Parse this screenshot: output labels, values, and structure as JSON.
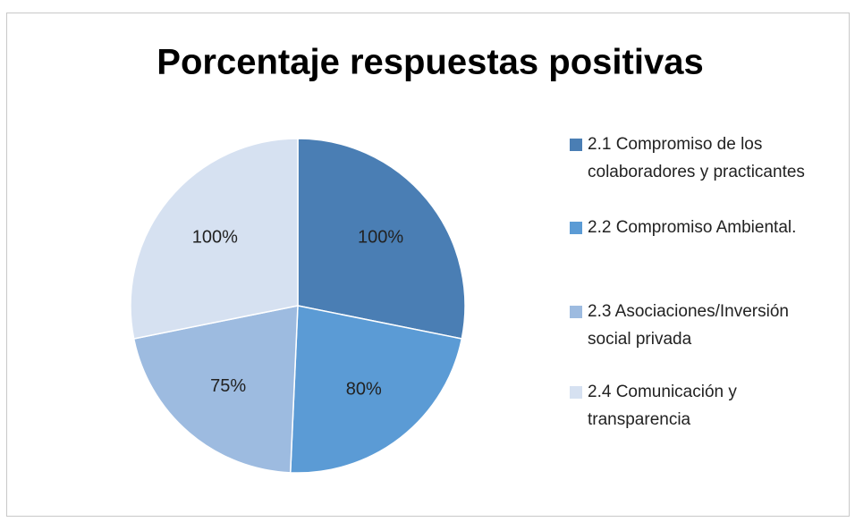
{
  "chart_data": {
    "type": "pie",
    "title": "Porcentaje respuestas positivas",
    "categories": [
      "2.1 Compromiso de los colaboradores y practicantes",
      "2.2 Compromiso Ambiental.",
      "2.3 Asociaciones/Inversión social privada",
      "2.4 Comunicación y transparencia"
    ],
    "values": [
      100,
      80,
      75,
      100
    ],
    "value_labels": [
      "100%",
      "80%",
      "75%",
      "100%"
    ],
    "colors": [
      "#4a7eb4",
      "#5b9bd5",
      "#9dbbe0",
      "#d6e1f1"
    ],
    "legend": "right"
  }
}
